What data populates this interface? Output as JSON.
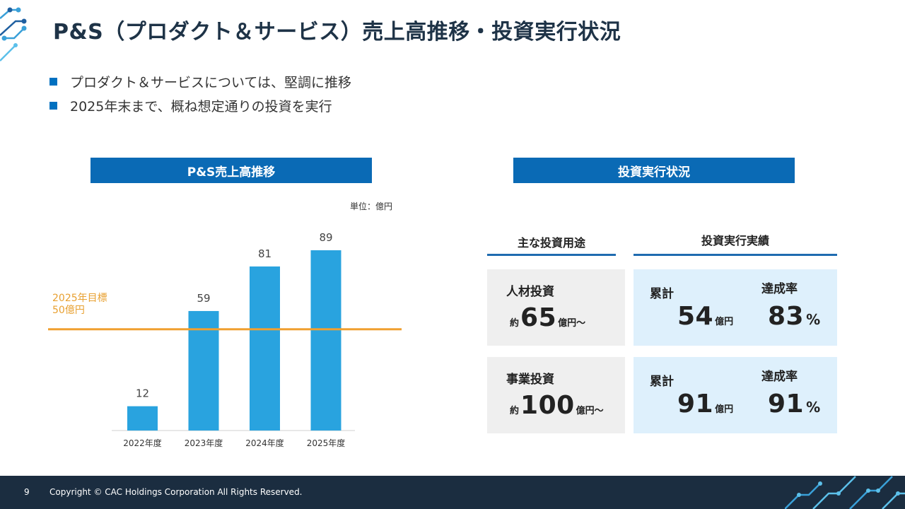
{
  "page": {
    "title": "P&S（プロダクト＆サービス）売上高推移・投資実行状況",
    "bullets": [
      "プロダクト＆サービスについては、堅調に推移",
      "2025年末まで、概ね想定通りの投資を実行"
    ]
  },
  "left_panel": {
    "header": "P&S売上高推移",
    "unit": "単位：億円",
    "target_label_line1": "2025年目標",
    "target_label_line2": "50億円"
  },
  "chart_data": {
    "type": "bar",
    "title": "P&S売上高推移",
    "unit": "単位：億円",
    "categories": [
      "2022年度",
      "2023年度",
      "2024年度",
      "2025年度"
    ],
    "values": [
      12,
      59,
      81,
      89
    ],
    "target": {
      "label": "2025年目標 50億円",
      "value": 50
    },
    "ylim": [
      0,
      89
    ],
    "bar_color": "#29a3df",
    "target_color": "#f0a030"
  },
  "right_panel": {
    "header": "投資実行状況",
    "col_left_header": "主な投資用途",
    "col_right_header": "投資実行実績",
    "rows": [
      {
        "category": "人材投資",
        "planned_prefix": "約",
        "planned_value": "65",
        "planned_suffix": "億円～",
        "cumulative_label": "累計",
        "cumulative_value": "54",
        "cumulative_unit": "億円",
        "rate_label": "達成率",
        "rate_value": "83",
        "rate_unit": "%"
      },
      {
        "category": "事業投資",
        "planned_prefix": "約",
        "planned_value": "100",
        "planned_suffix": "億円～",
        "cumulative_label": "累計",
        "cumulative_value": "91",
        "cumulative_unit": "億円",
        "rate_label": "達成率",
        "rate_value": "91",
        "rate_unit": "%"
      }
    ]
  },
  "footer": {
    "page_number": "9",
    "copyright": "Copyright © CAC Holdings Corporation All Rights Reserved."
  },
  "colors": {
    "band": "#0a6ab5",
    "footer": "#1b2d40",
    "accent": "#0070c0",
    "title": "#1e3347"
  }
}
